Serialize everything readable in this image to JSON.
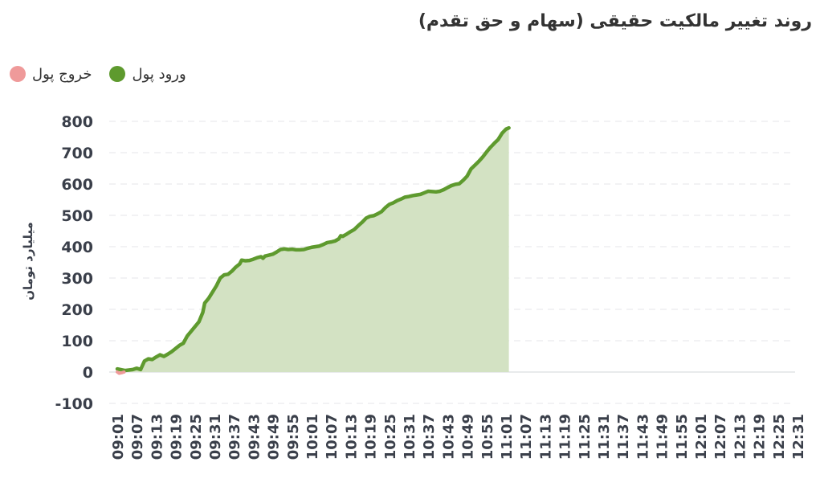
{
  "chart_data": {
    "type": "area",
    "title": "روند تغییر مالکیت حقیقی (سهام و حق تقدم)",
    "ylabel": "میلیارد تومان",
    "xlabel": "",
    "ylim": [
      -100,
      800
    ],
    "yticks": [
      800,
      700,
      600,
      500,
      400,
      300,
      200,
      100,
      0,
      -100
    ],
    "grid": true,
    "legend_position": "top-left",
    "categories": [
      "09:01",
      "09:07",
      "09:13",
      "09:19",
      "09:25",
      "09:31",
      "09:37",
      "09:43",
      "09:49",
      "09:55",
      "10:01",
      "10:07",
      "10:13",
      "10:19",
      "10:25",
      "10:31",
      "10:37",
      "10:43",
      "10:49",
      "10:55",
      "11:01",
      "11:07",
      "11:13",
      "11:19",
      "11:25",
      "11:31",
      "11:37",
      "11:43",
      "11:49",
      "11:55",
      "12:01",
      "12:07",
      "12:13",
      "12:19",
      "12:25",
      "12:31"
    ],
    "series": [
      {
        "name": "ورود پول",
        "color": "#5e9a2e",
        "fill": "#d3e2c3",
        "points": [
          [
            0,
            10
          ],
          [
            0.4,
            5
          ],
          [
            0.8,
            8
          ],
          [
            1.0,
            12
          ],
          [
            1.2,
            8
          ],
          [
            1.4,
            35
          ],
          [
            1.6,
            42
          ],
          [
            1.8,
            40
          ],
          [
            2.0,
            48
          ],
          [
            2.2,
            55
          ],
          [
            2.4,
            50
          ],
          [
            2.6,
            57
          ],
          [
            2.8,
            65
          ],
          [
            3.0,
            75
          ],
          [
            3.2,
            85
          ],
          [
            3.4,
            92
          ],
          [
            3.6,
            115
          ],
          [
            3.8,
            130
          ],
          [
            4.0,
            145
          ],
          [
            4.2,
            160
          ],
          [
            4.4,
            190
          ],
          [
            4.5,
            220
          ],
          [
            4.7,
            235
          ],
          [
            4.9,
            255
          ],
          [
            5.1,
            275
          ],
          [
            5.3,
            300
          ],
          [
            5.5,
            310
          ],
          [
            5.7,
            312
          ],
          [
            5.9,
            322
          ],
          [
            6.1,
            335
          ],
          [
            6.3,
            345
          ],
          [
            6.4,
            357
          ],
          [
            6.6,
            355
          ],
          [
            6.8,
            356
          ],
          [
            7.0,
            360
          ],
          [
            7.2,
            365
          ],
          [
            7.4,
            368
          ],
          [
            7.5,
            363
          ],
          [
            7.6,
            370
          ],
          [
            7.8,
            373
          ],
          [
            8.0,
            376
          ],
          [
            8.2,
            383
          ],
          [
            8.4,
            391
          ],
          [
            8.6,
            393
          ],
          [
            8.8,
            391
          ],
          [
            9.0,
            392
          ],
          [
            9.2,
            390
          ],
          [
            9.4,
            390
          ],
          [
            9.6,
            391
          ],
          [
            9.8,
            395
          ],
          [
            10.0,
            398
          ],
          [
            10.2,
            400
          ],
          [
            10.4,
            402
          ],
          [
            10.6,
            407
          ],
          [
            10.8,
            413
          ],
          [
            11.0,
            415
          ],
          [
            11.2,
            418
          ],
          [
            11.4,
            425
          ],
          [
            11.5,
            435
          ],
          [
            11.6,
            433
          ],
          [
            11.8,
            440
          ],
          [
            12.0,
            448
          ],
          [
            12.2,
            455
          ],
          [
            12.4,
            467
          ],
          [
            12.6,
            478
          ],
          [
            12.8,
            491
          ],
          [
            13.0,
            497
          ],
          [
            13.2,
            499
          ],
          [
            13.4,
            505
          ],
          [
            13.6,
            512
          ],
          [
            13.8,
            525
          ],
          [
            14.0,
            535
          ],
          [
            14.2,
            540
          ],
          [
            14.4,
            547
          ],
          [
            14.6,
            552
          ],
          [
            14.8,
            558
          ],
          [
            15.0,
            560
          ],
          [
            15.2,
            563
          ],
          [
            15.4,
            565
          ],
          [
            15.6,
            567
          ],
          [
            15.8,
            572
          ],
          [
            16.0,
            577
          ],
          [
            16.2,
            576
          ],
          [
            16.4,
            575
          ],
          [
            16.6,
            577
          ],
          [
            16.8,
            582
          ],
          [
            17.0,
            589
          ],
          [
            17.2,
            595
          ],
          [
            17.4,
            599
          ],
          [
            17.6,
            601
          ],
          [
            17.8,
            612
          ],
          [
            18.0,
            625
          ],
          [
            18.2,
            648
          ],
          [
            18.4,
            660
          ],
          [
            18.6,
            672
          ],
          [
            18.8,
            686
          ],
          [
            19.0,
            702
          ],
          [
            19.2,
            717
          ],
          [
            19.4,
            730
          ],
          [
            19.6,
            742
          ],
          [
            19.8,
            762
          ],
          [
            20.0,
            775
          ],
          [
            20.15,
            779
          ]
        ]
      },
      {
        "name": "خروج پول",
        "color": "#ef9a9a",
        "fill": "#f7c9c9",
        "points": [
          [
            0,
            0
          ],
          [
            0.1,
            -4
          ],
          [
            0.25,
            -2
          ],
          [
            0.35,
            0
          ]
        ]
      }
    ]
  }
}
